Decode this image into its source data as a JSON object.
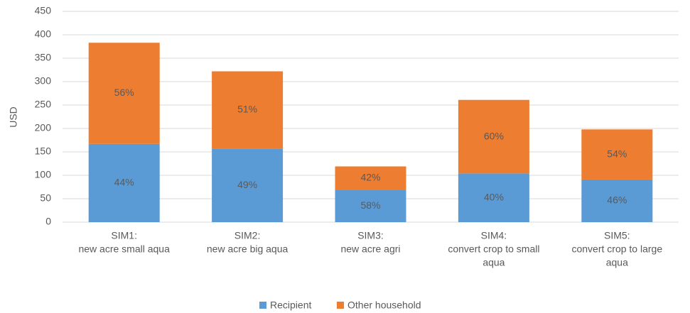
{
  "chart_data": {
    "type": "stacked_bar",
    "y_label": "USD",
    "categories": [
      [
        "SIM1:",
        "new acre small aqua"
      ],
      [
        "SIM2:",
        "new acre big aqua"
      ],
      [
        "SIM3:",
        "new acre agri"
      ],
      [
        "SIM4:",
        "convert crop to small",
        "aqua"
      ],
      [
        "SIM5:",
        "convert crop to large",
        "aqua"
      ]
    ],
    "series": [
      {
        "name": "Recipient",
        "color": "#5b9bd5",
        "values": [
          167,
          157,
          69,
          104,
          91
        ],
        "share_labels": [
          "44%",
          "49%",
          "58%",
          "40%",
          "46%"
        ]
      },
      {
        "name": "Other household",
        "color": "#ed7d31",
        "values": [
          216,
          165,
          50,
          157,
          107
        ],
        "share_labels": [
          "56%",
          "51%",
          "42%",
          "60%",
          "54%"
        ]
      }
    ],
    "ylim": [
      0,
      450
    ],
    "yticks": [
      0,
      50,
      100,
      150,
      200,
      250,
      300,
      350,
      400,
      450
    ],
    "grid": true,
    "legend": "bottom"
  }
}
